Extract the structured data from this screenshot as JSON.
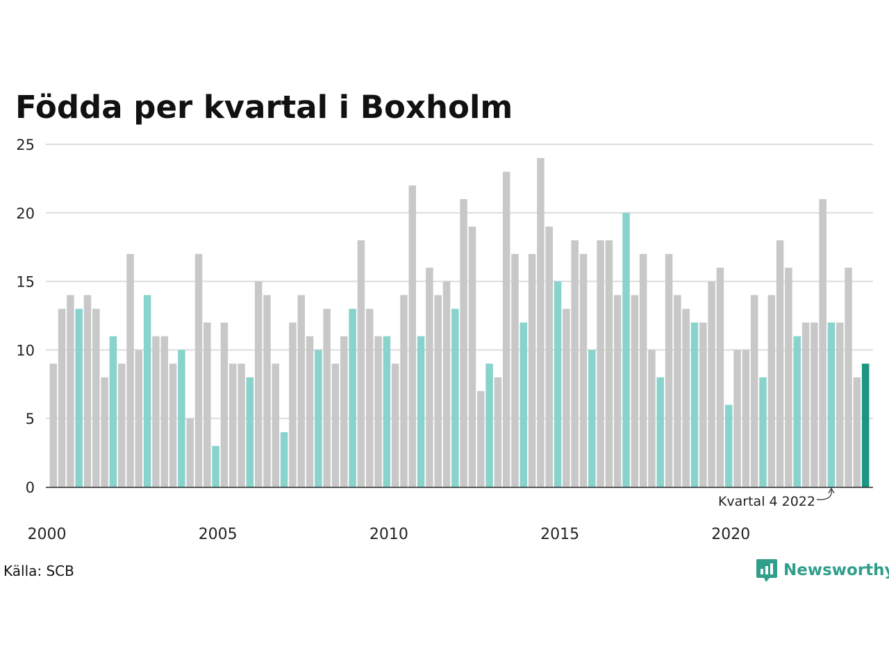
{
  "title": "Födda per kvartal i Boxholm",
  "source": "Källa: SCB",
  "brand": {
    "name": "Newsworthy",
    "icon": "newsworthy-logo-icon"
  },
  "colors": {
    "default": "#c8c8c8",
    "q4": "#88d3cc",
    "latest": "#1b9683",
    "grid": "#dcdcdc",
    "axis": "#222222"
  },
  "chart_data": {
    "type": "bar",
    "title": "Födda per kvartal i Boxholm",
    "xlabel": "",
    "ylabel": "",
    "ylim": [
      0,
      25
    ],
    "yticks": [
      0,
      5,
      10,
      15,
      20,
      25
    ],
    "xticks": [
      "2000",
      "2005",
      "2010",
      "2015",
      "2020"
    ],
    "grid": true,
    "start_year": 2000,
    "values": [
      9,
      13,
      14,
      13,
      14,
      13,
      8,
      11,
      9,
      17,
      10,
      14,
      11,
      11,
      9,
      10,
      5,
      17,
      12,
      3,
      12,
      9,
      9,
      8,
      15,
      14,
      9,
      4,
      12,
      14,
      11,
      10,
      13,
      9,
      11,
      13,
      18,
      13,
      11,
      11,
      9,
      14,
      22,
      11,
      16,
      14,
      15,
      13,
      21,
      19,
      7,
      9,
      8,
      23,
      17,
      12,
      17,
      24,
      19,
      15,
      13,
      18,
      17,
      10,
      18,
      18,
      14,
      20,
      14,
      17,
      10,
      8,
      17,
      14,
      13,
      12,
      12,
      15,
      16,
      6,
      10,
      10,
      14,
      8,
      14,
      18,
      16,
      11,
      12,
      12,
      21,
      12,
      12,
      16,
      8,
      9
    ],
    "highlight": "Kvartal 4",
    "annotation": "Kvartal 4 2022"
  }
}
